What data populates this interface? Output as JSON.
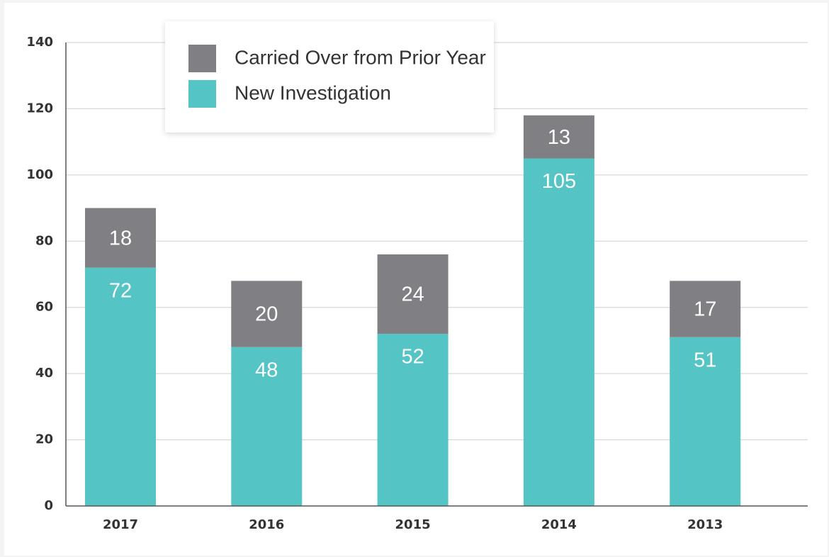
{
  "chart_data": {
    "type": "stacked_bar",
    "categories": [
      "2017",
      "2016",
      "2015",
      "2014",
      "2013"
    ],
    "series": [
      {
        "name": "New Investigation",
        "color": "#55c4c4",
        "values": [
          72,
          48,
          52,
          105,
          51
        ]
      },
      {
        "name": "Carried Over from Prior Year",
        "color": "#808084",
        "values": [
          18,
          20,
          24,
          13,
          17
        ]
      }
    ],
    "ylim": [
      0,
      140
    ],
    "yticks": [
      0,
      20,
      40,
      60,
      80,
      100,
      120,
      140
    ],
    "grid": true
  }
}
